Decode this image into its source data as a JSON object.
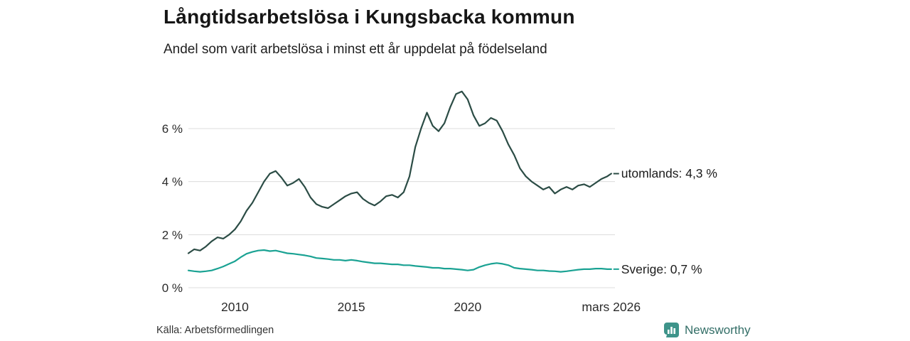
{
  "header": {
    "title": "Långtidsarbetslösa i Kungsbacka kommun",
    "subtitle": "Andel som varit arbetslösa i minst ett år uppdelat på födelseland"
  },
  "footer": {
    "source": "Källa: Arbetsförmedlingen",
    "brand": "Newsworthy"
  },
  "colors": {
    "grid": "#dcdcdc",
    "tick_text": "#2b2b2b",
    "utomlands_line": "#2b4c45",
    "sverige_line": "#1aa293",
    "brand_teal": "#3e948a"
  },
  "chart_data": {
    "type": "line",
    "title": "Långtidsarbetslösa i Kungsbacka kommun",
    "subtitle": "Andel som varit arbetslösa i minst ett år uppdelat på födelseland",
    "x_unit": "decimal_year",
    "xlim": [
      2008,
      2026.33
    ],
    "ylim": [
      0,
      7.9
    ],
    "grid": "horizontal",
    "legend_position": "right-of-line-end",
    "y_ticks": [
      {
        "v": 0,
        "label": "0 %"
      },
      {
        "v": 2,
        "label": "2 %"
      },
      {
        "v": 4,
        "label": "4 %"
      },
      {
        "v": 6,
        "label": "6 %"
      }
    ],
    "x_ticks": [
      {
        "v": 2010,
        "label": "2010"
      },
      {
        "v": 2015,
        "label": "2015"
      },
      {
        "v": 2020,
        "label": "2020"
      },
      {
        "v": 2026.17,
        "label": "mars 2026"
      }
    ],
    "x_start": 2008,
    "x_step": 0.25,
    "x_end": 2026.17,
    "series": [
      {
        "name": "utomlands",
        "label": "utomlands: 4,3 %",
        "last_value": 4.3,
        "color": "#2b4c45",
        "y": [
          1.3,
          1.45,
          1.4,
          1.55,
          1.75,
          1.9,
          1.85,
          2.0,
          2.2,
          2.5,
          2.9,
          3.2,
          3.6,
          4.0,
          4.3,
          4.4,
          4.15,
          3.85,
          3.95,
          4.1,
          3.8,
          3.4,
          3.15,
          3.05,
          3.0,
          3.15,
          3.3,
          3.45,
          3.55,
          3.6,
          3.35,
          3.2,
          3.1,
          3.25,
          3.45,
          3.5,
          3.4,
          3.6,
          4.2,
          5.3,
          6.0,
          6.6,
          6.1,
          5.9,
          6.2,
          6.8,
          7.3,
          7.4,
          7.1,
          6.5,
          6.1,
          6.2,
          6.4,
          6.3,
          5.9,
          5.4,
          5.0,
          4.5,
          4.2,
          4.0,
          3.85,
          3.7,
          3.8,
          3.55,
          3.7,
          3.8,
          3.7,
          3.85,
          3.9,
          3.8,
          3.95,
          4.1,
          4.2,
          4.3
        ]
      },
      {
        "name": "Sverige",
        "label": "Sverige: 0,7 %",
        "last_value": 0.7,
        "color": "#1aa293",
        "y": [
          0.65,
          0.62,
          0.6,
          0.62,
          0.65,
          0.72,
          0.8,
          0.9,
          1.0,
          1.15,
          1.28,
          1.35,
          1.4,
          1.42,
          1.38,
          1.4,
          1.35,
          1.3,
          1.28,
          1.25,
          1.22,
          1.18,
          1.12,
          1.1,
          1.08,
          1.05,
          1.05,
          1.02,
          1.05,
          1.02,
          0.98,
          0.95,
          0.92,
          0.92,
          0.9,
          0.88,
          0.88,
          0.85,
          0.85,
          0.82,
          0.8,
          0.78,
          0.75,
          0.75,
          0.72,
          0.72,
          0.7,
          0.68,
          0.65,
          0.68,
          0.78,
          0.85,
          0.9,
          0.93,
          0.9,
          0.85,
          0.75,
          0.72,
          0.7,
          0.68,
          0.65,
          0.65,
          0.63,
          0.62,
          0.6,
          0.62,
          0.65,
          0.68,
          0.7,
          0.7,
          0.72,
          0.72,
          0.7,
          0.7
        ]
      }
    ]
  }
}
